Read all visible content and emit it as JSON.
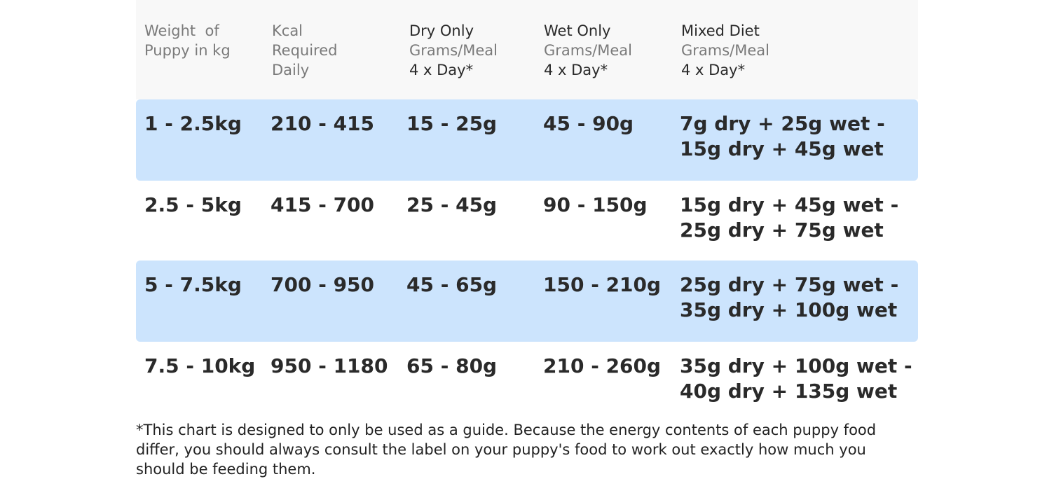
{
  "table": {
    "header": [
      [
        {
          "text": "Weight  of",
          "muted": true
        },
        {
          "text": "Puppy in kg",
          "muted": true
        }
      ],
      [
        {
          "text": "Kcal",
          "muted": true
        },
        {
          "text": "Required",
          "muted": true
        },
        {
          "text": "Daily",
          "muted": true
        }
      ],
      [
        {
          "text": "Dry Only",
          "muted": false
        },
        {
          "text": "Grams/Meal",
          "muted": true
        },
        {
          "text": "4 x Day*",
          "muted": false
        }
      ],
      [
        {
          "text": "Wet Only",
          "muted": false
        },
        {
          "text": "Grams/Meal",
          "muted": true
        },
        {
          "text": "4 x Day*",
          "muted": false
        }
      ],
      [
        {
          "text": "Mixed Diet",
          "muted": false
        },
        {
          "text": "Grams/Meal",
          "muted": true
        },
        {
          "text": "4 x Day*",
          "muted": false
        }
      ]
    ],
    "rows": [
      [
        "1 - 2.5kg",
        "210 - 415",
        "15 - 25g",
        "45 - 90g",
        [
          "7g dry + 25g wet -",
          "15g dry + 45g wet"
        ]
      ],
      [
        "2.5 - 5kg",
        "415 - 700",
        "25 - 45g",
        "90 - 150g",
        [
          "15g dry + 45g wet -",
          "25g dry + 75g wet"
        ]
      ],
      [
        "5 - 7.5kg",
        "700 - 950",
        "45 - 65g",
        "150 - 210g",
        [
          "25g dry + 75g wet -",
          "35g dry + 100g wet"
        ]
      ],
      [
        "7.5 - 10kg",
        "950 - 1180",
        "65 - 80g",
        "210 - 260g",
        [
          "35g dry + 100g wet -",
          "40g dry + 135g wet"
        ]
      ]
    ]
  },
  "footnote": "*This chart is designed to only be used as a guide. Because the energy contents of each puppy food differ, you should always consult the label on your puppy's food to work out exactly how much you should be feeding them."
}
